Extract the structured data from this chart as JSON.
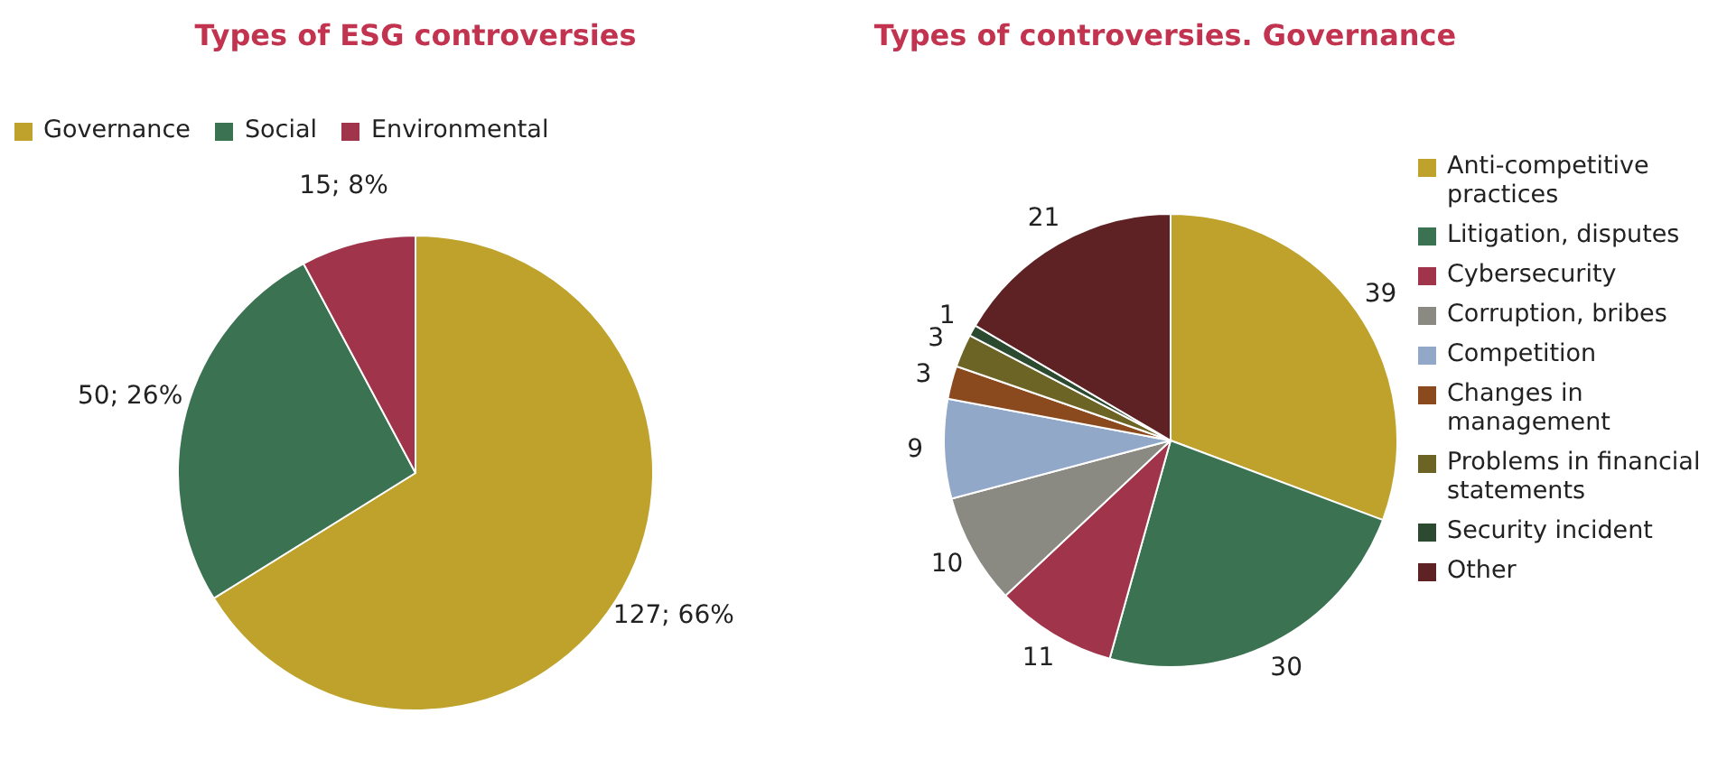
{
  "chart_data": [
    {
      "type": "pie",
      "title": "Types of ESG controversies",
      "categories": [
        "Governance",
        "Social",
        "Environmental"
      ],
      "values": [
        127,
        50,
        15
      ],
      "value_labels": [
        "127; 66%",
        "50; 26%",
        "15; 8%"
      ],
      "colors": [
        "#bea22c",
        "#3a7252",
        "#a0344a"
      ],
      "legend": "top"
    },
    {
      "type": "pie",
      "title": "Types of controversies. Governance",
      "categories": [
        "Anti-competitive practices",
        "Litigation, disputes",
        "Cybersecurity",
        "Corruption, bribes",
        "Competition",
        "Changes in management",
        "Problems in financial statements",
        "Security incident",
        "Other"
      ],
      "values": [
        39,
        30,
        11,
        10,
        9,
        3,
        3,
        1,
        21
      ],
      "data_labels": true,
      "colors": [
        "#bea22c",
        "#3a7252",
        "#a0344a",
        "#8a8a82",
        "#91a8c9",
        "#8a4a1e",
        "#6b6424",
        "#2b4a2f",
        "#5e2124"
      ],
      "legend": "right"
    }
  ]
}
